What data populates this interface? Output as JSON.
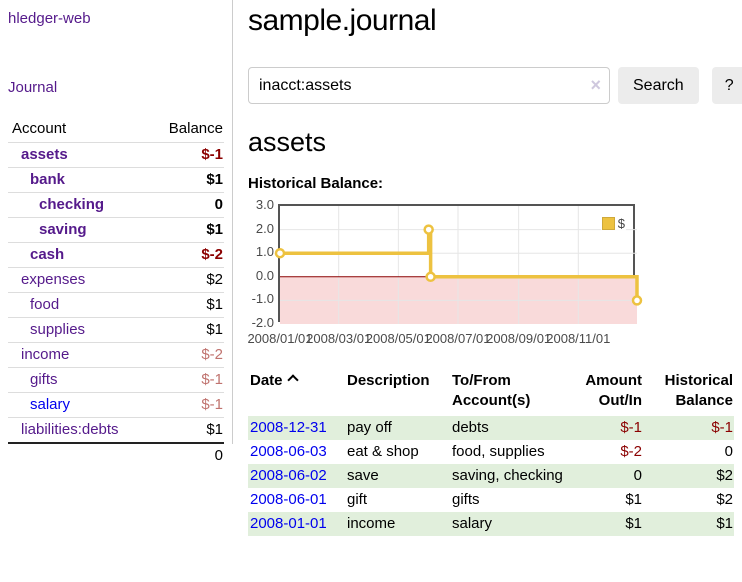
{
  "app": {
    "brand": "hledger-web",
    "nav_journal": "Journal"
  },
  "sidebar": {
    "columns": [
      "Account",
      "Balance"
    ],
    "rows": [
      {
        "account": "assets",
        "indent": 1,
        "bold": true,
        "balance": "$-1",
        "balance_style": "neg-strong"
      },
      {
        "account": "bank",
        "indent": 2,
        "bold": true,
        "balance": "$1",
        "balance_style": "pos"
      },
      {
        "account": "checking",
        "indent": 3,
        "bold": true,
        "balance": "0",
        "balance_style": "pos"
      },
      {
        "account": "saving",
        "indent": 3,
        "bold": true,
        "balance": "$1",
        "balance_style": "pos"
      },
      {
        "account": "cash",
        "indent": 2,
        "bold": true,
        "balance": "$-2",
        "balance_style": "neg-strong"
      },
      {
        "account": "expenses",
        "indent": 1,
        "bold": false,
        "balance": "$2",
        "balance_style": "pos"
      },
      {
        "account": "food",
        "indent": 2,
        "bold": false,
        "balance": "$1",
        "balance_style": "pos"
      },
      {
        "account": "supplies",
        "indent": 2,
        "bold": false,
        "balance": "$1",
        "balance_style": "pos"
      },
      {
        "account": "income",
        "indent": 1,
        "bold": false,
        "balance": "$-2",
        "balance_style": "neg-soft"
      },
      {
        "account": "gifts",
        "indent": 2,
        "bold": false,
        "balance": "$-1",
        "balance_style": "neg-soft"
      },
      {
        "account": "salary",
        "indent": 2,
        "bold": false,
        "balance": "$-1",
        "balance_style": "neg-soft",
        "link_color": "blue"
      },
      {
        "account": "liabilities:debts",
        "indent": 1,
        "bold": false,
        "balance": "$1",
        "balance_style": "pos"
      }
    ],
    "total": "0"
  },
  "header": {
    "title": "sample.journal"
  },
  "search": {
    "value": "inacct:assets",
    "clear_icon": "×",
    "button_label": "Search",
    "help_label": "?"
  },
  "account_page": {
    "heading": "assets",
    "chart_label": "Historical Balance:"
  },
  "chart_data": {
    "type": "line",
    "step": true,
    "title": "Historical Balance",
    "series": [
      {
        "name": "$",
        "color": "#edc240",
        "points": [
          [
            "2008-01-01",
            1
          ],
          [
            "2008-06-01",
            2
          ],
          [
            "2008-06-03",
            0
          ],
          [
            "2008-12-31",
            -1
          ]
        ]
      }
    ],
    "xlim": [
      "2008-01-01",
      "2008-12-31"
    ],
    "ylim": [
      -2,
      3
    ],
    "y_ticks": [
      "3.0",
      "2.0",
      "1.0",
      "0.0",
      "-1.0",
      "-2.0"
    ],
    "x_ticks": [
      "2008/01/01",
      "2008/03/01",
      "2008/05/01",
      "2008/07/01",
      "2008/09/01",
      "2008/11/01"
    ],
    "grid": true,
    "gridline_color": "#e6e6e6",
    "border_color": "#545454",
    "zero_line_color": "#8b0000",
    "negative_region_color": "#f9dada",
    "point_fill": "#ffffff",
    "legend": "$",
    "legend_position": "top-right"
  },
  "register": {
    "columns": [
      "Date",
      "Description",
      "To/From Account(s)",
      "Amount Out/In",
      "Historical Balance"
    ],
    "rows": [
      {
        "date": "2008-12-31",
        "description": "pay off",
        "accounts": "debts",
        "amount": "$-1",
        "amount_negative": true,
        "balance": "$-1",
        "balance_negative": true
      },
      {
        "date": "2008-06-03",
        "description": "eat & shop",
        "accounts": "food, supplies",
        "amount": "$-2",
        "amount_negative": true,
        "balance": "0",
        "balance_negative": false
      },
      {
        "date": "2008-06-02",
        "description": "save",
        "accounts": "saving, checking",
        "amount": "0",
        "amount_negative": false,
        "balance": "$2",
        "balance_negative": false
      },
      {
        "date": "2008-06-01",
        "description": "gift",
        "accounts": "gifts",
        "amount": "$1",
        "amount_negative": false,
        "balance": "$2",
        "balance_negative": false
      },
      {
        "date": "2008-01-01",
        "description": "income",
        "accounts": "salary",
        "amount": "$1",
        "amount_negative": false,
        "balance": "$1",
        "balance_negative": false
      }
    ]
  }
}
